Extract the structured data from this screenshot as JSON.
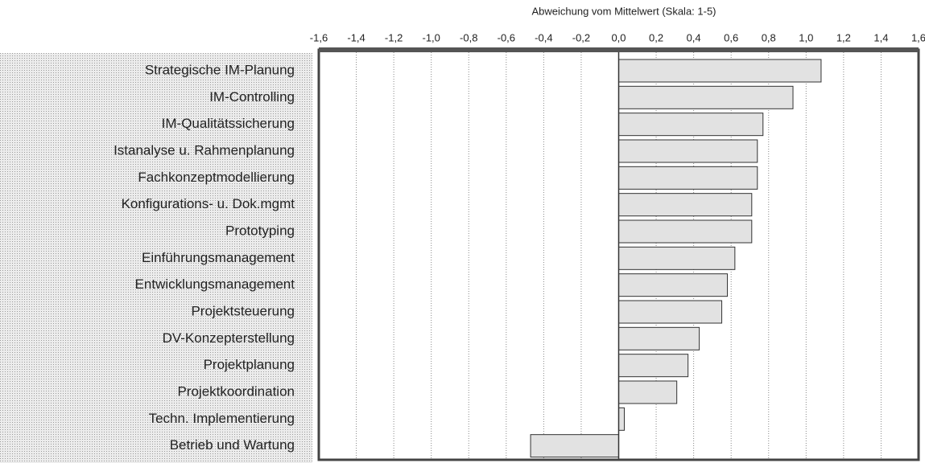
{
  "chart_data": {
    "type": "barh",
    "xlabel": "Abweichung vom Mittelwert (Skala: 1-5)",
    "categories": [
      "Strategische IM-Planung",
      "IM-Controlling",
      "IM-Qualitätssicherung",
      "Istanalyse u. Rahmenplanung",
      "Fachkonzeptmodellierung",
      "Konfigurations- u. Dok.mgmt",
      "Prototyping",
      "Einführungsmanagement",
      "Entwicklungsmanagement",
      "Projektsteuerung",
      "DV-Konzepterstellung",
      "Projektplanung",
      "Projektkoordination",
      "Techn. Implementierung",
      "Betrieb und Wartung"
    ],
    "values": [
      1.08,
      0.93,
      0.77,
      0.74,
      0.74,
      0.71,
      0.71,
      0.62,
      0.58,
      0.55,
      0.43,
      0.37,
      0.31,
      0.03,
      -0.47
    ],
    "color": "#e2e2e2",
    "xlim": [
      -1.6,
      1.6
    ],
    "xticks": [
      {
        "value": -1.6,
        "label": "-1,6"
      },
      {
        "value": -1.4,
        "label": "-1,4"
      },
      {
        "value": -1.2,
        "label": "-1,2"
      },
      {
        "value": -1.0,
        "label": "-1,0"
      },
      {
        "value": -0.8,
        "label": "-0,8"
      },
      {
        "value": -0.6,
        "label": "-0,6"
      },
      {
        "value": -0.4,
        "label": "-0,4"
      },
      {
        "value": -0.2,
        "label": "-0,2"
      },
      {
        "value": 0,
        "label": "0,0"
      },
      {
        "value": 0.2,
        "label": "0,2"
      },
      {
        "value": 0.4,
        "label": "0,4"
      },
      {
        "value": 0.6,
        "label": "0,6"
      },
      {
        "value": 0.8,
        "label": "0,8"
      },
      {
        "value": 1.0,
        "label": "1,0"
      },
      {
        "value": 1.2,
        "label": "1,2"
      },
      {
        "value": 1.4,
        "label": "1,4"
      },
      {
        "value": 1.6,
        "label": "1,6"
      }
    ],
    "grid": true
  }
}
